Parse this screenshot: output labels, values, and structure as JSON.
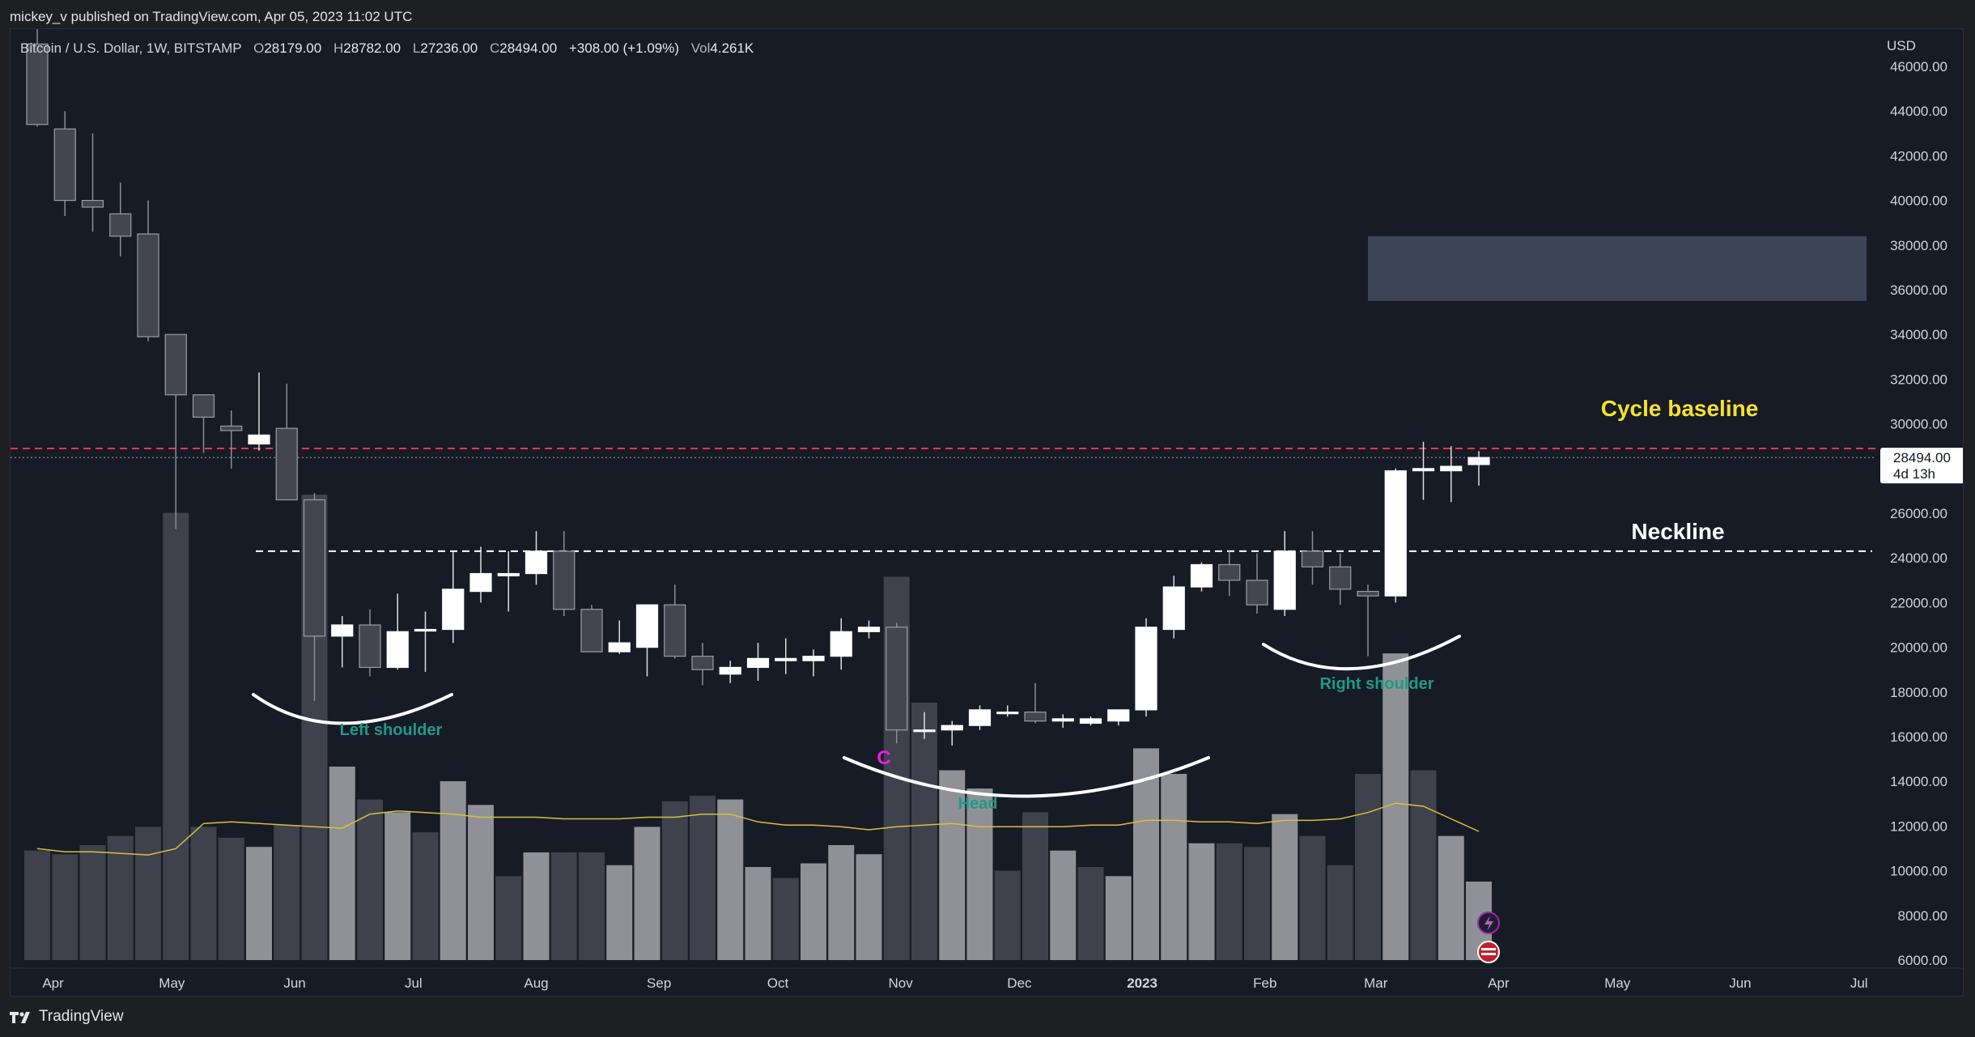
{
  "header": {
    "published": "mickey_v published on TradingView.com, Apr 05, 2023 11:02 UTC"
  },
  "legend": {
    "symbol": "Bitcoin / U.S. Dollar, 1W, BITSTAMP",
    "o_label": "O",
    "o_value": "28179.00",
    "h_label": "H",
    "h_value": "28782.00",
    "l_label": "L",
    "l_value": "27236.00",
    "c_label": "C",
    "c_value": "28494.00",
    "change": "+308.00 (+1.09%)",
    "vol_label": "Vol",
    "vol_value": "4.261K"
  },
  "price_tag": {
    "price": "28494.00",
    "countdown": "4d 13h"
  },
  "footer": {
    "brand": "TradingView"
  },
  "colors": {
    "background": "#171b26",
    "up_candle": "#ffffff",
    "down_candle": "#434651",
    "volume_up": "#8f9196",
    "volume_down": "#3f424c",
    "volume_ma": "#d4c23a",
    "cycle_line": "#f23645",
    "neckline": "#ffffff",
    "annotation_green": "#1e9a87",
    "annotation_yellow": "#f5e12b",
    "annotation_magenta": "#e91ee3",
    "resistance_zone": "#4a5468"
  },
  "chart_data": {
    "type": "candlestick",
    "title": "Bitcoin / U.S. Dollar, 1W, BITSTAMP",
    "y_axis": {
      "currency": "USD",
      "ylim": [
        5000,
        47500
      ],
      "ticks": [
        6000,
        8000,
        10000,
        12000,
        14000,
        16000,
        18000,
        20000,
        22000,
        24000,
        26000,
        28000,
        30000,
        32000,
        34000,
        36000,
        38000,
        40000,
        42000,
        44000,
        46000
      ],
      "tick_labels": [
        "6000.00",
        "8000.00",
        "10000.00",
        "12000.00",
        "14000.00",
        "16000.00",
        "18000.00",
        "20000.00",
        "22000.00",
        "24000.00",
        "26000.00",
        "28000.00",
        "30000.00",
        "32000.00",
        "34000.00",
        "36000.00",
        "38000.00",
        "40000.00",
        "42000.00",
        "44000.00",
        "46000.00"
      ]
    },
    "x_axis": {
      "labels": [
        {
          "label": "Apr",
          "date": "2022-04-01"
        },
        {
          "label": "May",
          "date": "2022-05-01"
        },
        {
          "label": "Jun",
          "date": "2022-06-01"
        },
        {
          "label": "Jul",
          "date": "2022-07-01"
        },
        {
          "label": "Aug",
          "date": "2022-08-01"
        },
        {
          "label": "Sep",
          "date": "2022-09-01"
        },
        {
          "label": "Oct",
          "date": "2022-10-01"
        },
        {
          "label": "Nov",
          "date": "2022-11-01"
        },
        {
          "label": "Dec",
          "date": "2022-12-01"
        },
        {
          "label": "2023",
          "date": "2023-01-01",
          "bold": true
        },
        {
          "label": "Feb",
          "date": "2023-02-01"
        },
        {
          "label": "Mar",
          "date": "2023-03-01"
        },
        {
          "label": "Apr",
          "date": "2023-04-01"
        },
        {
          "label": "May",
          "date": "2023-05-01"
        },
        {
          "label": "Jun",
          "date": "2023-06-01"
        },
        {
          "label": "Jul",
          "date": "2023-07-01"
        }
      ]
    },
    "candles": [
      {
        "date": "2022-03-28",
        "o": 47000,
        "h": 48200,
        "l": 43300,
        "c": 43400
      },
      {
        "date": "2022-04-04",
        "o": 43200,
        "h": 44000,
        "l": 39300,
        "c": 40000
      },
      {
        "date": "2022-04-11",
        "o": 40000,
        "h": 43000,
        "l": 38600,
        "c": 39700
      },
      {
        "date": "2022-04-18",
        "o": 39400,
        "h": 40800,
        "l": 37500,
        "c": 38400
      },
      {
        "date": "2022-04-25",
        "o": 38500,
        "h": 40000,
        "l": 33700,
        "c": 33900
      },
      {
        "date": "2022-05-02",
        "o": 34000,
        "h": 34000,
        "l": 25300,
        "c": 31300
      },
      {
        "date": "2022-05-09",
        "o": 31300,
        "h": 31300,
        "l": 28700,
        "c": 30300
      },
      {
        "date": "2022-05-16",
        "o": 29900,
        "h": 30600,
        "l": 28000,
        "c": 29700
      },
      {
        "date": "2022-05-23",
        "o": 29100,
        "h": 32300,
        "l": 28800,
        "c": 29500
      },
      {
        "date": "2022-05-30",
        "o": 29800,
        "h": 31800,
        "l": 26600,
        "c": 26600
      },
      {
        "date": "2022-06-06",
        "o": 26600,
        "h": 26900,
        "l": 17600,
        "c": 20500
      },
      {
        "date": "2022-06-13",
        "o": 20500,
        "h": 21400,
        "l": 19100,
        "c": 21000
      },
      {
        "date": "2022-06-20",
        "o": 21000,
        "h": 21700,
        "l": 18700,
        "c": 19100
      },
      {
        "date": "2022-06-27",
        "o": 19100,
        "h": 22400,
        "l": 19000,
        "c": 20700
      },
      {
        "date": "2022-07-04",
        "o": 20800,
        "h": 21600,
        "l": 18900,
        "c": 20800
      },
      {
        "date": "2022-07-11",
        "o": 20800,
        "h": 24300,
        "l": 20200,
        "c": 22600
      },
      {
        "date": "2022-07-18",
        "o": 22500,
        "h": 24500,
        "l": 22000,
        "c": 23300
      },
      {
        "date": "2022-07-25",
        "o": 23200,
        "h": 24300,
        "l": 21600,
        "c": 23300
      },
      {
        "date": "2022-08-01",
        "o": 23300,
        "h": 25200,
        "l": 22800,
        "c": 24300
      },
      {
        "date": "2022-08-08",
        "o": 24300,
        "h": 25200,
        "l": 21400,
        "c": 21700
      },
      {
        "date": "2022-08-15",
        "o": 21700,
        "h": 21900,
        "l": 19800,
        "c": 19800
      },
      {
        "date": "2022-08-22",
        "o": 19800,
        "h": 21200,
        "l": 19700,
        "c": 20200
      },
      {
        "date": "2022-08-29",
        "o": 20000,
        "h": 21900,
        "l": 18700,
        "c": 21900
      },
      {
        "date": "2022-09-05",
        "o": 21900,
        "h": 22800,
        "l": 19500,
        "c": 19600
      },
      {
        "date": "2022-09-12",
        "o": 19600,
        "h": 20200,
        "l": 18300,
        "c": 19000
      },
      {
        "date": "2022-09-19",
        "o": 18800,
        "h": 19400,
        "l": 18400,
        "c": 19100
      },
      {
        "date": "2022-09-26",
        "o": 19100,
        "h": 20200,
        "l": 18500,
        "c": 19500
      },
      {
        "date": "2022-10-03",
        "o": 19400,
        "h": 20400,
        "l": 18800,
        "c": 19500
      },
      {
        "date": "2022-10-10",
        "o": 19400,
        "h": 19900,
        "l": 18700,
        "c": 19600
      },
      {
        "date": "2022-10-17",
        "o": 19600,
        "h": 21300,
        "l": 19000,
        "c": 20700
      },
      {
        "date": "2022-10-24",
        "o": 20700,
        "h": 21200,
        "l": 20400,
        "c": 20900
      },
      {
        "date": "2022-10-31",
        "o": 20900,
        "h": 21100,
        "l": 15700,
        "c": 16300
      },
      {
        "date": "2022-11-07",
        "o": 16300,
        "h": 17100,
        "l": 15900,
        "c": 16300
      },
      {
        "date": "2022-11-14",
        "o": 16300,
        "h": 16700,
        "l": 15600,
        "c": 16500
      },
      {
        "date": "2022-11-21",
        "o": 16500,
        "h": 17400,
        "l": 16300,
        "c": 17200
      },
      {
        "date": "2022-11-28",
        "o": 17100,
        "h": 17400,
        "l": 16900,
        "c": 17100
      },
      {
        "date": "2022-12-05",
        "o": 17100,
        "h": 18400,
        "l": 16600,
        "c": 16700
      },
      {
        "date": "2022-12-12",
        "o": 16700,
        "h": 17000,
        "l": 16400,
        "c": 16800
      },
      {
        "date": "2022-12-19",
        "o": 16600,
        "h": 16900,
        "l": 16500,
        "c": 16800
      },
      {
        "date": "2022-12-26",
        "o": 16700,
        "h": 17200,
        "l": 16500,
        "c": 17200
      },
      {
        "date": "2023-01-02",
        "o": 17200,
        "h": 21300,
        "l": 16900,
        "c": 20900
      },
      {
        "date": "2023-01-09",
        "o": 20800,
        "h": 23200,
        "l": 20400,
        "c": 22700
      },
      {
        "date": "2023-01-16",
        "o": 22700,
        "h": 23800,
        "l": 22500,
        "c": 23700
      },
      {
        "date": "2023-01-23",
        "o": 23700,
        "h": 24300,
        "l": 22300,
        "c": 23000
      },
      {
        "date": "2023-01-30",
        "o": 23000,
        "h": 24200,
        "l": 21500,
        "c": 21900
      },
      {
        "date": "2023-02-06",
        "o": 21700,
        "h": 25200,
        "l": 21400,
        "c": 24300
      },
      {
        "date": "2023-02-13",
        "o": 24300,
        "h": 25200,
        "l": 22800,
        "c": 23600
      },
      {
        "date": "2023-02-20",
        "o": 23600,
        "h": 24200,
        "l": 21900,
        "c": 22600
      },
      {
        "date": "2023-02-27",
        "o": 22500,
        "h": 22800,
        "l": 19600,
        "c": 22300
      },
      {
        "date": "2023-03-06",
        "o": 22300,
        "h": 28000,
        "l": 22000,
        "c": 27900
      },
      {
        "date": "2023-03-13",
        "o": 27900,
        "h": 29200,
        "l": 26600,
        "c": 28000
      },
      {
        "date": "2023-03-20",
        "o": 27900,
        "h": 29000,
        "l": 26500,
        "c": 28100
      },
      {
        "date": "2023-03-27",
        "o": 28179,
        "h": 28782,
        "l": 27236,
        "c": 28494
      }
    ],
    "volume": [
      {
        "date": "2022-03-28",
        "v": 6.0,
        "up": false
      },
      {
        "date": "2022-04-04",
        "v": 5.8,
        "up": false
      },
      {
        "date": "2022-04-11",
        "v": 6.3,
        "up": false
      },
      {
        "date": "2022-04-18",
        "v": 6.8,
        "up": false
      },
      {
        "date": "2022-04-25",
        "v": 7.3,
        "up": false
      },
      {
        "date": "2022-05-02",
        "v": 24.5,
        "up": false
      },
      {
        "date": "2022-05-09",
        "v": 7.3,
        "up": false
      },
      {
        "date": "2022-05-16",
        "v": 6.7,
        "up": false
      },
      {
        "date": "2022-05-23",
        "v": 6.2,
        "up": true
      },
      {
        "date": "2022-05-30",
        "v": 7.4,
        "up": false
      },
      {
        "date": "2022-06-06",
        "v": 25.5,
        "up": false
      },
      {
        "date": "2022-06-13",
        "v": 10.6,
        "up": true
      },
      {
        "date": "2022-06-20",
        "v": 8.8,
        "up": false
      },
      {
        "date": "2022-06-27",
        "v": 8.1,
        "up": true
      },
      {
        "date": "2022-07-04",
        "v": 7.0,
        "up": false
      },
      {
        "date": "2022-07-11",
        "v": 9.8,
        "up": true
      },
      {
        "date": "2022-07-18",
        "v": 8.5,
        "up": true
      },
      {
        "date": "2022-07-25",
        "v": 4.6,
        "up": false
      },
      {
        "date": "2022-08-01",
        "v": 5.9,
        "up": true
      },
      {
        "date": "2022-08-08",
        "v": 5.9,
        "up": false
      },
      {
        "date": "2022-08-15",
        "v": 5.9,
        "up": false
      },
      {
        "date": "2022-08-22",
        "v": 5.2,
        "up": true
      },
      {
        "date": "2022-08-29",
        "v": 7.3,
        "up": true
      },
      {
        "date": "2022-09-05",
        "v": 8.7,
        "up": false
      },
      {
        "date": "2022-09-12",
        "v": 9.0,
        "up": false
      },
      {
        "date": "2022-09-19",
        "v": 8.8,
        "up": true
      },
      {
        "date": "2022-09-26",
        "v": 5.1,
        "up": true
      },
      {
        "date": "2022-10-03",
        "v": 4.5,
        "up": false
      },
      {
        "date": "2022-10-10",
        "v": 5.3,
        "up": true
      },
      {
        "date": "2022-10-17",
        "v": 6.3,
        "up": true
      },
      {
        "date": "2022-10-24",
        "v": 5.8,
        "up": true
      },
      {
        "date": "2022-10-31",
        "v": 21.0,
        "up": false
      },
      {
        "date": "2022-11-07",
        "v": 14.1,
        "up": false
      },
      {
        "date": "2022-11-14",
        "v": 10.4,
        "up": true
      },
      {
        "date": "2022-11-21",
        "v": 9.4,
        "up": true
      },
      {
        "date": "2022-11-28",
        "v": 4.9,
        "up": false
      },
      {
        "date": "2022-12-05",
        "v": 8.1,
        "up": false
      },
      {
        "date": "2022-12-12",
        "v": 6.0,
        "up": true
      },
      {
        "date": "2022-12-19",
        "v": 5.1,
        "up": false
      },
      {
        "date": "2022-12-26",
        "v": 4.6,
        "up": true
      },
      {
        "date": "2023-01-02",
        "v": 11.6,
        "up": true
      },
      {
        "date": "2023-01-09",
        "v": 10.2,
        "up": true
      },
      {
        "date": "2023-01-16",
        "v": 6.4,
        "up": true
      },
      {
        "date": "2023-01-23",
        "v": 6.4,
        "up": false
      },
      {
        "date": "2023-01-30",
        "v": 6.2,
        "up": false
      },
      {
        "date": "2023-02-06",
        "v": 8.0,
        "up": true
      },
      {
        "date": "2023-02-13",
        "v": 6.8,
        "up": false
      },
      {
        "date": "2023-02-20",
        "v": 5.2,
        "up": false
      },
      {
        "date": "2023-02-27",
        "v": 10.2,
        "up": false
      },
      {
        "date": "2023-03-06",
        "v": 16.8,
        "up": true
      },
      {
        "date": "2023-03-13",
        "v": 10.4,
        "up": false
      },
      {
        "date": "2023-03-20",
        "v": 6.8,
        "up": true
      },
      {
        "date": "2023-03-27",
        "v": 4.3,
        "up": true
      }
    ],
    "volume_ma": [
      7.1,
      6.9,
      6.9,
      6.8,
      6.7,
      7.1,
      8.7,
      8.8,
      8.7,
      8.6,
      8.5,
      8.4,
      9.3,
      9.5,
      9.4,
      9.3,
      9.1,
      9.1,
      9.1,
      9.0,
      9.0,
      9.0,
      9.1,
      9.1,
      9.3,
      9.3,
      8.8,
      8.6,
      8.6,
      8.5,
      8.3,
      8.5,
      8.6,
      8.7,
      8.5,
      8.5,
      8.5,
      8.5,
      8.6,
      8.6,
      8.9,
      8.9,
      8.8,
      8.8,
      8.7,
      8.9,
      8.9,
      9.0,
      9.4,
      10.0,
      9.8,
      9.0,
      8.2
    ],
    "levels": [
      {
        "name": "Cycle baseline",
        "price": 28900,
        "style": "dashed-red"
      },
      {
        "name": "Neckline",
        "price": 24300,
        "style": "dashed-white"
      },
      {
        "name": "Last price",
        "price": 28494,
        "style": "dotted-grey"
      }
    ],
    "zone": {
      "from_date": "2023-02-27",
      "to_date": "2023-07-31",
      "low": 35500,
      "high": 38400
    },
    "annotations": [
      {
        "text": "Left shoulder",
        "type": "label"
      },
      {
        "text": "Head",
        "type": "label"
      },
      {
        "text": "Right shoulder",
        "type": "label"
      },
      {
        "text": "C",
        "type": "label"
      },
      {
        "text": "Cycle baseline",
        "type": "label"
      },
      {
        "text": "Neckline",
        "type": "label"
      }
    ],
    "grid": false,
    "legend": "top-left"
  }
}
